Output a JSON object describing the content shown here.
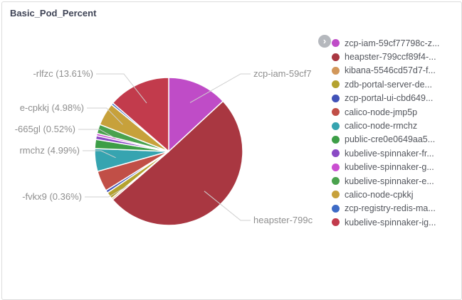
{
  "panel": {
    "title": "Basic_Pod_Percent"
  },
  "icons": {
    "chevron_right": "›"
  },
  "colors": {
    "panel_border": "#dcdcdc",
    "title_text": "#3f4456",
    "legend_text": "#54575e",
    "callout_text": "#8f8f8f",
    "callout_line": "#cfcfcf",
    "legend_scroll_bg": "#b5b8bd"
  },
  "chart_data": {
    "type": "pie",
    "title": "Basic_Pod_Percent",
    "unit": "percent",
    "start_angle": "top",
    "direction": "clockwise",
    "legend_position": "right",
    "series": [
      {
        "label": "zcp-iam-59cf77798c-z...",
        "value": 13.11,
        "color": "#bf4cc7"
      },
      {
        "label": "heapster-799ccf89f4-...",
        "value": 50.56,
        "color": "#a93741"
      },
      {
        "label": "kibana-5546cd57d7-f...",
        "value": 0.36,
        "color": "#d2975a"
      },
      {
        "label": "zdb-portal-server-de...",
        "value": 1.5,
        "color": "#b4a22f"
      },
      {
        "label": "zcp-portal-ui-cbd649...",
        "value": 0.6,
        "color": "#4152b8"
      },
      {
        "label": "calico-node-jmp5p",
        "value": 4.5,
        "color": "#c14f47"
      },
      {
        "label": "calico-node-rmchz",
        "value": 4.99,
        "color": "#36a4b0"
      },
      {
        "label": "public-cre0e0649aa5...",
        "value": 2.0,
        "color": "#3d9e47"
      },
      {
        "label": "kubelive-spinnaker-fr...",
        "value": 0.8,
        "color": "#8a4ac5"
      },
      {
        "label": "kubelive-spinnaker-g...",
        "value": 0.52,
        "color": "#ca4fd1"
      },
      {
        "label": "kubelive-spinnaker-e...",
        "value": 2.0,
        "color": "#4aa24e"
      },
      {
        "label": "calico-node-cpkkj",
        "value": 4.98,
        "color": "#c7a13b"
      },
      {
        "label": "zcp-registry-redis-ma...",
        "value": 0.47,
        "color": "#3e6bc6"
      },
      {
        "label": "kubelive-spinnaker-ig...",
        "value": 13.61,
        "color": "#c23b4c"
      }
    ],
    "callouts": [
      {
        "series_index": 13,
        "side": "left",
        "text": "-rlfzc (13.61%)"
      },
      {
        "series_index": 11,
        "side": "left",
        "text": "e-cpkkj (4.98%)"
      },
      {
        "series_index": 9,
        "side": "left",
        "text": "-665gl (0.52%)"
      },
      {
        "series_index": 6,
        "side": "left",
        "text": "rmchz (4.99%)"
      },
      {
        "series_index": 2,
        "side": "left",
        "text": "-fvkx9 (0.36%)"
      },
      {
        "series_index": 0,
        "side": "right",
        "text": "zcp-iam-59cf7"
      },
      {
        "series_index": 1,
        "side": "right",
        "text": "heapster-799c"
      }
    ]
  }
}
